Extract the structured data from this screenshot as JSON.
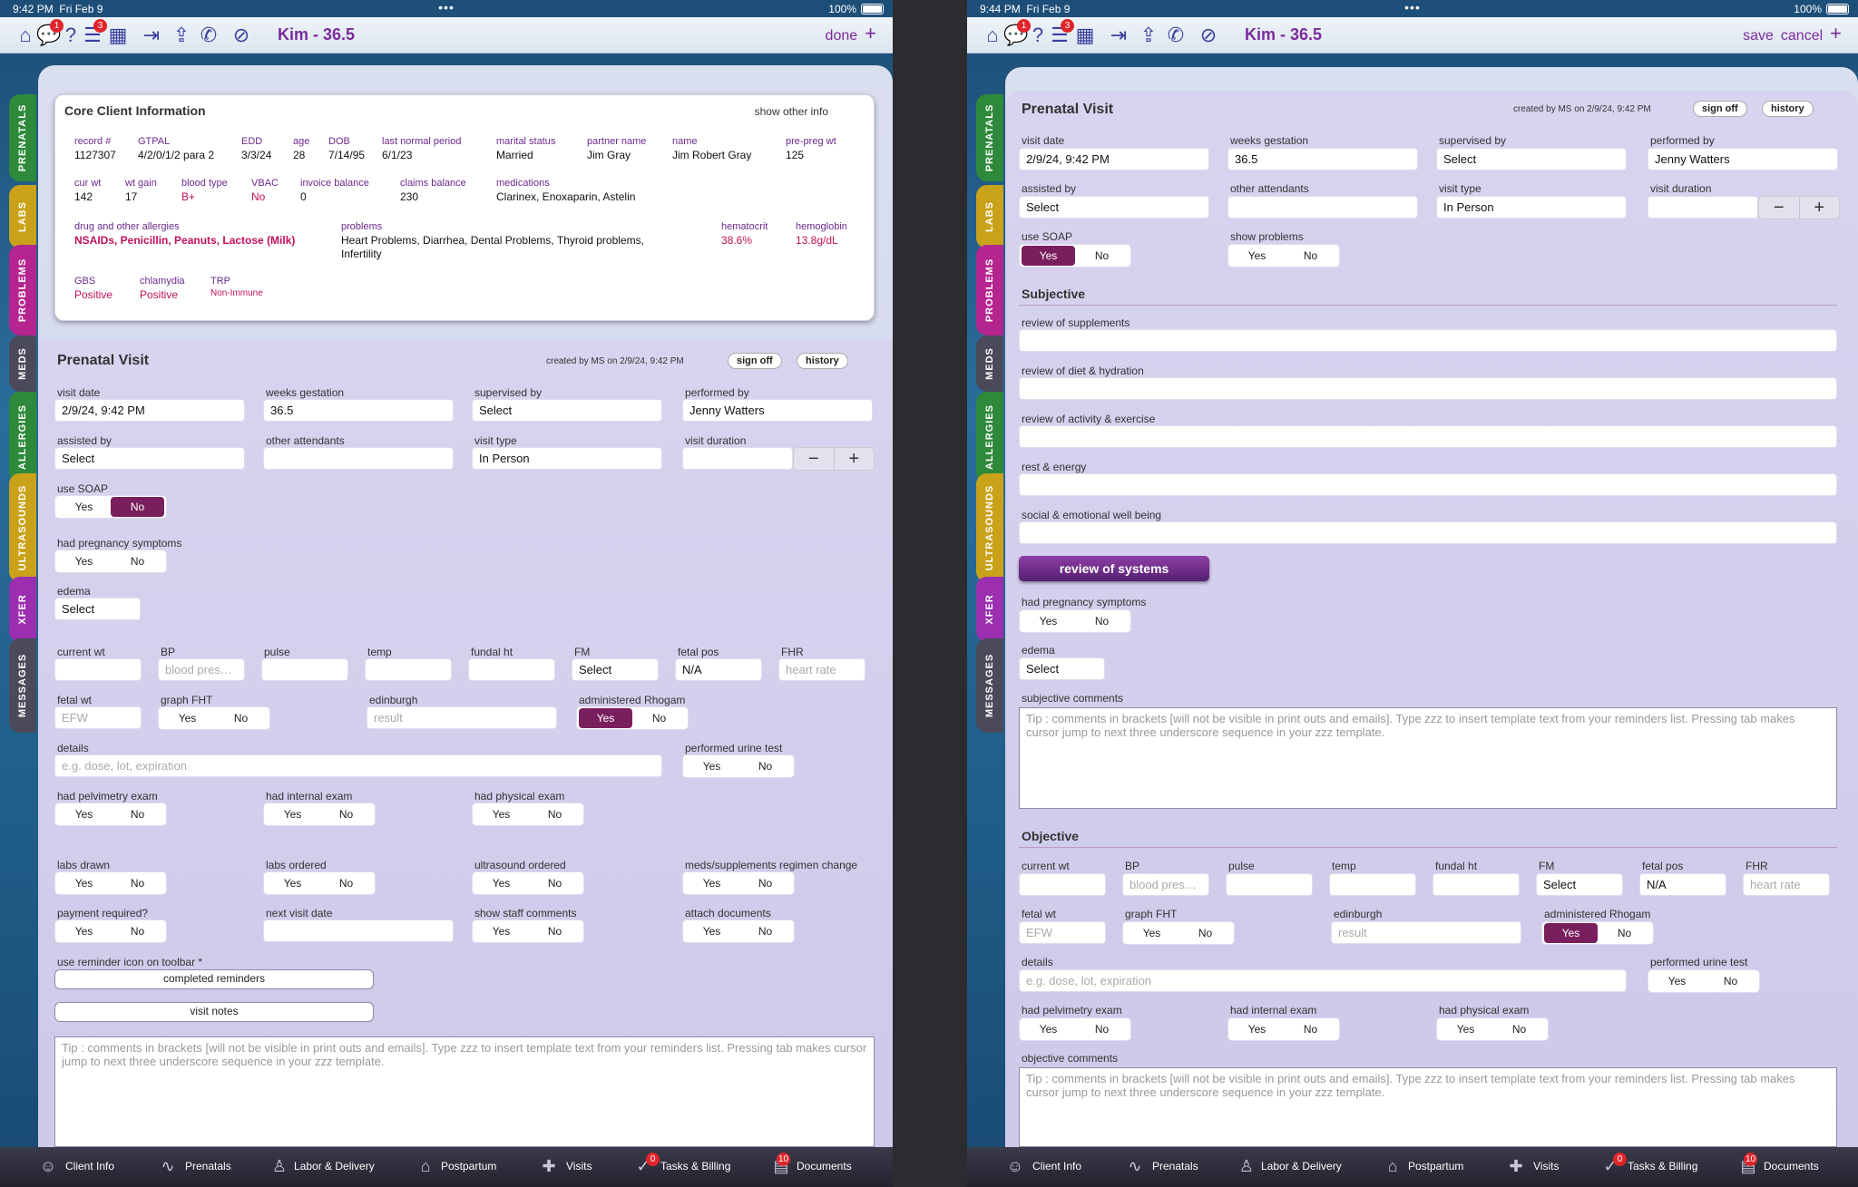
{
  "left": {
    "status": {
      "time": "9:42 PM",
      "date": "Fri Feb 9",
      "battery": "100%"
    },
    "toolbar": {
      "title": "Kim - 36.5",
      "done": "done",
      "plus": "+",
      "badge_chat": "1",
      "badge_list": "3"
    },
    "prenatal": {
      "visit_date": "2/9/24, 9:42 PM",
      "weeks_gestation": "36.5",
      "supervised_by": "Select",
      "performed_by": "Jenny Watters",
      "assisted_by": "Select",
      "other_attendants": "",
      "visit_type": "In Person",
      "visit_duration": "",
      "use_soap": "No",
      "fetal_pos": "N/A",
      "fm": "Select",
      "edema": "Select",
      "administered_rhogam": "Yes"
    }
  },
  "right": {
    "status": {
      "time": "9:44 PM",
      "date": "Fri Feb 9",
      "battery": "100%"
    },
    "toolbar": {
      "title": "Kim - 36.5",
      "save": "save",
      "cancel": "cancel",
      "plus": "+",
      "badge_chat": "1",
      "badge_list": "3"
    },
    "prenatal": {
      "visit_date": "2/9/24, 9:42 PM",
      "weeks_gestation": "36.5",
      "supervised_by": "Select",
      "performed_by": "Jenny Watters",
      "assisted_by": "Select",
      "other_attendants": "",
      "visit_type": "In Person",
      "visit_duration": "",
      "use_soap": "Yes",
      "fetal_pos": "N/A",
      "fm": "Select",
      "edema": "Select",
      "administered_rhogam": "Yes"
    }
  },
  "side_tabs": [
    {
      "label": "PRENATALS",
      "color": "#2e8a3a"
    },
    {
      "label": "LABS",
      "color": "#c9a21a"
    },
    {
      "label": "PROBLEMS",
      "color": "#b5258f"
    },
    {
      "label": "MEDS",
      "color": "#4a4a5a"
    },
    {
      "label": "ALLERGIES",
      "color": "#2e8a3a"
    },
    {
      "label": "ULTRASOUNDS",
      "color": "#c9a21a"
    },
    {
      "label": "XFER",
      "color": "#9b2fb0"
    },
    {
      "label": "MESSAGES",
      "color": "#4a4a5a"
    }
  ],
  "labels": {
    "prenatal_visit": "Prenatal Visit",
    "created_by": "created by MS on 2/9/24, 9:42 PM",
    "sign_off": "sign off",
    "history": "history",
    "visit_date": "visit date",
    "weeks_gestation": "weeks gestation",
    "supervised_by": "supervised by",
    "performed_by": "performed by",
    "assisted_by": "assisted by",
    "other_attendants": "other attendants",
    "visit_type": "visit type",
    "visit_duration": "visit duration",
    "use_soap": "use SOAP",
    "show_problems": "show problems",
    "subjective": "Subjective",
    "review_supplements": "review of supplements",
    "review_diet": "review of diet & hydration",
    "review_activity": "review of activity & exercise",
    "rest_energy": "rest & energy",
    "social_emotional": "social & emotional well being",
    "review_of_systems": "review of systems",
    "had_pregnancy_symptoms": "had pregnancy symptoms",
    "edema": "edema",
    "subjective_comments": "subjective comments",
    "objective": "Objective",
    "current_wt": "current wt",
    "bp": "BP",
    "pulse": "pulse",
    "temp": "temp",
    "fundal_ht": "fundal ht",
    "fm": "FM",
    "fetal_pos": "fetal pos",
    "fhr": "FHR",
    "fetal_wt": "fetal wt",
    "graph_fht": "graph FHT",
    "edinburgh": "edinburgh",
    "administered_rhogam": "administered Rhogam",
    "details": "details",
    "performed_urine_test": "performed urine test",
    "had_pelvimetry_exam": "had pelvimetry exam",
    "had_internal_exam": "had internal exam",
    "had_physical_exam": "had physical exam",
    "objective_comments": "objective comments",
    "labs_drawn": "labs drawn",
    "labs_ordered": "labs ordered",
    "ultrasound_ordered": "ultrasound ordered",
    "meds_change": "meds/supplements regimen change",
    "payment_required": "payment required?",
    "next_visit_date": "next visit date",
    "show_staff_comments": "show staff comments",
    "attach_documents": "attach documents",
    "use_reminder_icon": "use reminder icon on toolbar *",
    "completed_reminders": "completed reminders",
    "visit_notes": "visit notes",
    "yes": "Yes",
    "no": "No"
  },
  "placeholders": {
    "bp": "blood pres…",
    "fhr": "heart rate",
    "fetal_wt": "EFW",
    "edinburgh": "result",
    "details": "e.g. dose, lot, expiration",
    "tip": "Tip : comments in brackets [will not be visible in print outs and emails].  Type zzz to insert template text from your reminders list. Pressing tab makes cursor jump to next three underscore sequence in your zzz template."
  },
  "core": {
    "title": "Core Client Information",
    "show_other": "show other info",
    "record_label": "record #",
    "record": "1127307",
    "gtpal_label": "GTPAL",
    "gtpal": "4/2/0/1/2 para 2",
    "edd_label": "EDD",
    "edd": "3/3/24",
    "age_label": "age",
    "age": "28",
    "dob_label": "DOB",
    "dob": "7/14/95",
    "lnp_label": "last normal period",
    "lnp": "6/1/23",
    "marital_label": "marital status",
    "marital": "Married",
    "partner_label": "partner name",
    "partner": "Jim Gray",
    "name_label": "name",
    "name": "Jim Robert Gray",
    "prepreg_label": "pre-preg wt",
    "prepreg": "125",
    "curwt_label": "cur wt",
    "curwt": "142",
    "wtgain_label": "wt gain",
    "wtgain": "17",
    "blood_label": "blood type",
    "blood": "B+",
    "vbac_label": "VBAC",
    "vbac": "No",
    "invoice_label": "invoice balance",
    "invoice": "0",
    "claims_label": "claims balance",
    "claims": "230",
    "meds_label": "medications",
    "meds": "Clarinex, Enoxaparin, Astelin",
    "allergies_label": "drug and other allergies",
    "allergies": "NSAIDs, Penicillin, Peanuts, Lactose (Milk)",
    "problems_label": "problems",
    "problems1": "Heart Problems, Diarrhea, Dental Problems, Thyroid problems,",
    "problems2": "Infertility",
    "hct_label": "hematocrit",
    "hct": "38.6%",
    "hgb_label": "hemoglobin",
    "hgb": "13.8g/dL",
    "gbs_label": "GBS",
    "gbs": "Positive",
    "chlamydia_label": "chlamydia",
    "chlamydia": "Positive",
    "trp_label": "TRP",
    "trp": "Non-Immune"
  },
  "bottom_nav": [
    {
      "label": "Client Info",
      "icon": "person-icon",
      "badge": ""
    },
    {
      "label": "Prenatals",
      "icon": "heartbeat-icon",
      "badge": ""
    },
    {
      "label": "Labor & Delivery",
      "icon": "baby-icon",
      "badge": ""
    },
    {
      "label": "Postpartum",
      "icon": "house-icon",
      "badge": ""
    },
    {
      "label": "Visits",
      "icon": "medkit-icon",
      "badge": ""
    },
    {
      "label": "Tasks & Billing",
      "icon": "tasks-icon",
      "badge": "0"
    },
    {
      "label": "Documents",
      "icon": "documents-icon",
      "badge": "10"
    }
  ]
}
